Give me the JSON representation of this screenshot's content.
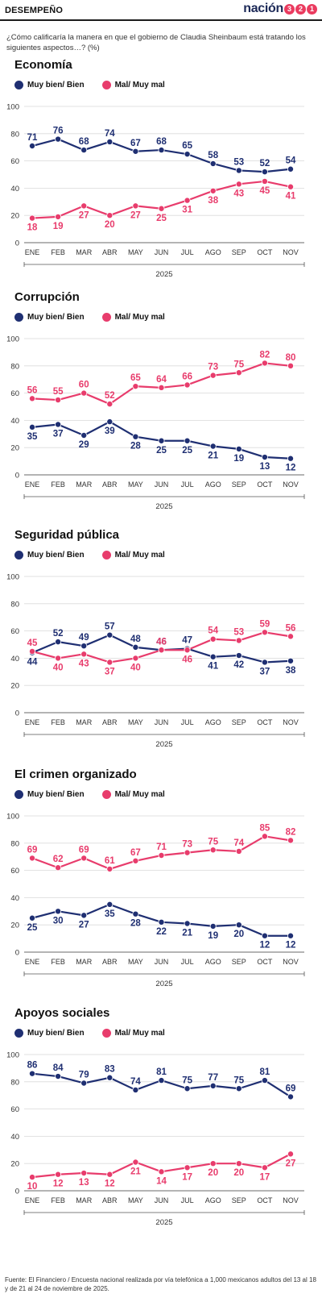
{
  "header": {
    "section_label": "DESEMPEÑO",
    "brand_word": "nación",
    "brand_digits": [
      "3",
      "2",
      "1"
    ]
  },
  "question": "¿Cómo calificaría la manera en que el gobierno de Claudia Sheinbaum está tratando los siguientes aspectos…? (%)",
  "colors": {
    "bien": "#1f2f72",
    "mal": "#e83c6c",
    "brand": "#ea3b5f"
  },
  "footer": "Fuente: El Financiero / Encuesta nacional realizada por vía telefónica a 1,000 mexicanos adultos del 13 al 18 y de 21 al 24 de noviembre de 2025.",
  "chart_data": [
    {
      "type": "line",
      "title": "Economía",
      "categories": [
        "ENE",
        "FEB",
        "MAR",
        "ABR",
        "MAY",
        "JUN",
        "JUL",
        "AGO",
        "SEP",
        "OCT",
        "NOV"
      ],
      "xlabel": "2025",
      "ylim": [
        0,
        100
      ],
      "yticks": [
        0,
        20,
        40,
        60,
        80,
        100
      ],
      "legend": "top-left",
      "series": [
        {
          "name": "Muy bien/ Bien",
          "values": [
            71,
            76,
            68,
            74,
            67,
            68,
            65,
            58,
            53,
            52,
            54
          ]
        },
        {
          "name": "Mal/ Muy mal",
          "values": [
            18,
            19,
            27,
            20,
            27,
            25,
            31,
            38,
            43,
            45,
            41
          ]
        }
      ]
    },
    {
      "type": "line",
      "title": "Corrupción",
      "categories": [
        "ENE",
        "FEB",
        "MAR",
        "ABR",
        "MAY",
        "JUN",
        "JUL",
        "AGO",
        "SEP",
        "OCT",
        "NOV"
      ],
      "xlabel": "2025",
      "ylim": [
        0,
        100
      ],
      "yticks": [
        0,
        20,
        40,
        60,
        80,
        100
      ],
      "legend": "top-left",
      "series": [
        {
          "name": "Muy bien/ Bien",
          "values": [
            35,
            37,
            29,
            39,
            28,
            25,
            25,
            21,
            19,
            13,
            12
          ]
        },
        {
          "name": "Mal/ Muy mal",
          "values": [
            56,
            55,
            60,
            52,
            65,
            64,
            66,
            73,
            75,
            82,
            80
          ]
        }
      ]
    },
    {
      "type": "line",
      "title": "Seguridad pública",
      "categories": [
        "ENE",
        "FEB",
        "MAR",
        "ABR",
        "MAY",
        "JUN",
        "JUL",
        "AGO",
        "SEP",
        "OCT",
        "NOV"
      ],
      "xlabel": "2025",
      "ylim": [
        0,
        100
      ],
      "yticks": [
        0,
        20,
        40,
        60,
        80,
        100
      ],
      "legend": "top-left",
      "series": [
        {
          "name": "Muy bien/ Bien",
          "values": [
            44,
            52,
            49,
            57,
            48,
            46,
            47,
            41,
            42,
            37,
            38
          ]
        },
        {
          "name": "Mal/ Muy mal",
          "values": [
            45,
            40,
            43,
            37,
            40,
            46,
            46,
            54,
            53,
            59,
            56
          ]
        }
      ]
    },
    {
      "type": "line",
      "title": "El crimen organizado",
      "categories": [
        "ENE",
        "FEB",
        "MAR",
        "ABR",
        "MAY",
        "JUN",
        "JUL",
        "AGO",
        "SEP",
        "OCT",
        "NOV"
      ],
      "xlabel": "2025",
      "ylim": [
        0,
        100
      ],
      "yticks": [
        0,
        20,
        40,
        60,
        80,
        100
      ],
      "legend": "top-left",
      "series": [
        {
          "name": "Muy bien/ Bien",
          "values": [
            25,
            30,
            27,
            35,
            28,
            22,
            21,
            19,
            20,
            12,
            12
          ]
        },
        {
          "name": "Mal/ Muy mal",
          "values": [
            69,
            62,
            69,
            61,
            67,
            71,
            73,
            75,
            74,
            85,
            82
          ]
        }
      ]
    },
    {
      "type": "line",
      "title": "Apoyos sociales",
      "categories": [
        "ENE",
        "FEB",
        "MAR",
        "ABR",
        "MAY",
        "JUN",
        "JUL",
        "AGO",
        "SEP",
        "OCT",
        "NOV"
      ],
      "xlabel": "2025",
      "ylim": [
        0,
        100
      ],
      "yticks": [
        0,
        20,
        40,
        60,
        80,
        100
      ],
      "legend": "top-left",
      "series": [
        {
          "name": "Muy bien/ Bien",
          "values": [
            86,
            84,
            79,
            83,
            74,
            81,
            75,
            77,
            75,
            81,
            69
          ]
        },
        {
          "name": "Mal/ Muy mal",
          "values": [
            10,
            12,
            13,
            12,
            21,
            14,
            17,
            20,
            20,
            17,
            27
          ]
        }
      ]
    }
  ]
}
